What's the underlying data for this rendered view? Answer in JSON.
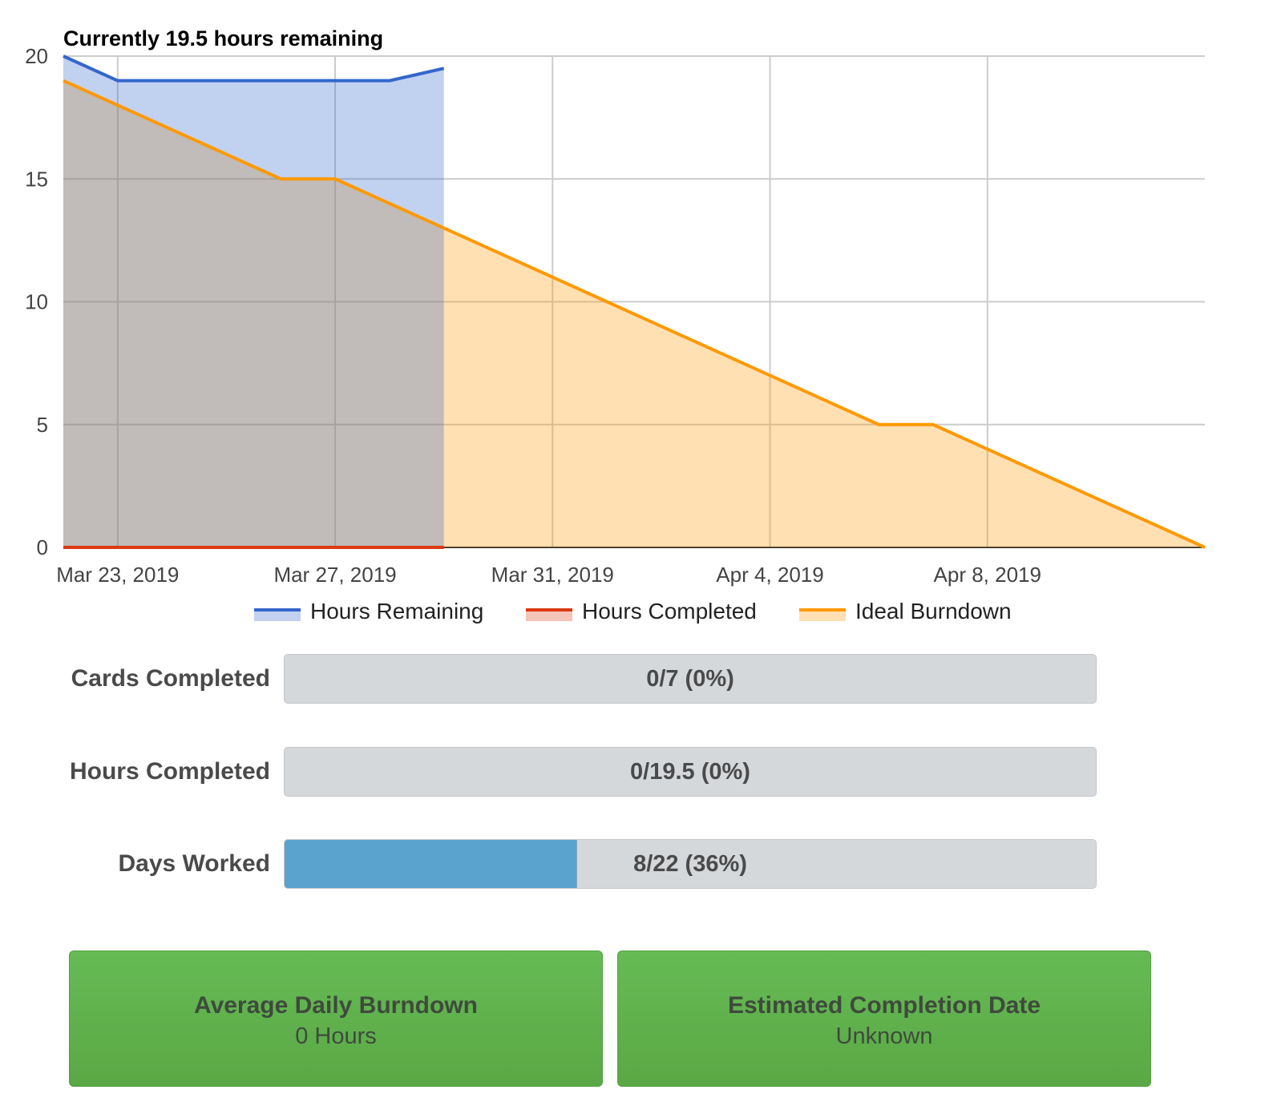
{
  "chart_data": {
    "type": "area",
    "title": "Currently 19.5 hours remaining",
    "x_start": "Mar 22, 2019",
    "x_end": "Apr 12, 2019",
    "x_tick_labels": [
      "Mar 23, 2019",
      "Mar 27, 2019",
      "Mar 31, 2019",
      "Apr 4, 2019",
      "Apr 8, 2019"
    ],
    "ylim": [
      0,
      20
    ],
    "y_ticks": [
      0,
      5,
      10,
      15,
      20
    ],
    "grid": true,
    "legend_position": "bottom",
    "series": [
      {
        "name": "Hours Remaining",
        "color": "#3366cc",
        "fill": "#c2d1f0",
        "points": [
          [
            "Mar 22, 2019",
            20
          ],
          [
            "Mar 23, 2019",
            19
          ],
          [
            "Mar 24, 2019",
            19
          ],
          [
            "Mar 25, 2019",
            19
          ],
          [
            "Mar 26, 2019",
            19
          ],
          [
            "Mar 27, 2019",
            19
          ],
          [
            "Mar 28, 2019",
            19
          ],
          [
            "Mar 29, 2019",
            19.5
          ]
        ]
      },
      {
        "name": "Hours Completed",
        "color": "#dc3912",
        "fill": "#f5c4b8",
        "points": [
          [
            "Mar 22, 2019",
            0
          ],
          [
            "Mar 23, 2019",
            0
          ],
          [
            "Mar 24, 2019",
            0
          ],
          [
            "Mar 25, 2019",
            0
          ],
          [
            "Mar 26, 2019",
            0
          ],
          [
            "Mar 27, 2019",
            0
          ],
          [
            "Mar 28, 2019",
            0
          ],
          [
            "Mar 29, 2019",
            0
          ]
        ]
      },
      {
        "name": "Ideal Burndown",
        "color": "#ff9900",
        "fill": "#ffe0b2",
        "points": [
          [
            "Mar 22, 2019",
            19
          ],
          [
            "Mar 23, 2019",
            18
          ],
          [
            "Mar 24, 2019",
            17
          ],
          [
            "Mar 25, 2019",
            16
          ],
          [
            "Mar 26, 2019",
            15
          ],
          [
            "Mar 27, 2019",
            15
          ],
          [
            "Mar 28, 2019",
            14
          ],
          [
            "Mar 29, 2019",
            13
          ],
          [
            "Mar 30, 2019",
            12
          ],
          [
            "Mar 31, 2019",
            11
          ],
          [
            "Apr 1, 2019",
            10
          ],
          [
            "Apr 2, 2019",
            9
          ],
          [
            "Apr 3, 2019",
            8
          ],
          [
            "Apr 4, 2019",
            7
          ],
          [
            "Apr 5, 2019",
            6
          ],
          [
            "Apr 6, 2019",
            5
          ],
          [
            "Apr 7, 2019",
            5
          ],
          [
            "Apr 8, 2019",
            4
          ],
          [
            "Apr 9, 2019",
            3
          ],
          [
            "Apr 10, 2019",
            2
          ],
          [
            "Apr 11, 2019",
            1
          ],
          [
            "Apr 12, 2019",
            0
          ]
        ]
      }
    ]
  },
  "stats": [
    {
      "label": "Cards Completed",
      "value_text": "0/7 (0%)",
      "fraction": 0
    },
    {
      "label": "Hours Completed",
      "value_text": "0/19.5 (0%)",
      "fraction": 0
    },
    {
      "label": "Days Worked",
      "value_text": "8/22 (36%)",
      "fraction": 0.36
    }
  ],
  "cards": [
    {
      "title": "Average Daily Burndown",
      "value": "0 Hours"
    },
    {
      "title": "Estimated Completion Date",
      "value": "Unknown"
    }
  ]
}
